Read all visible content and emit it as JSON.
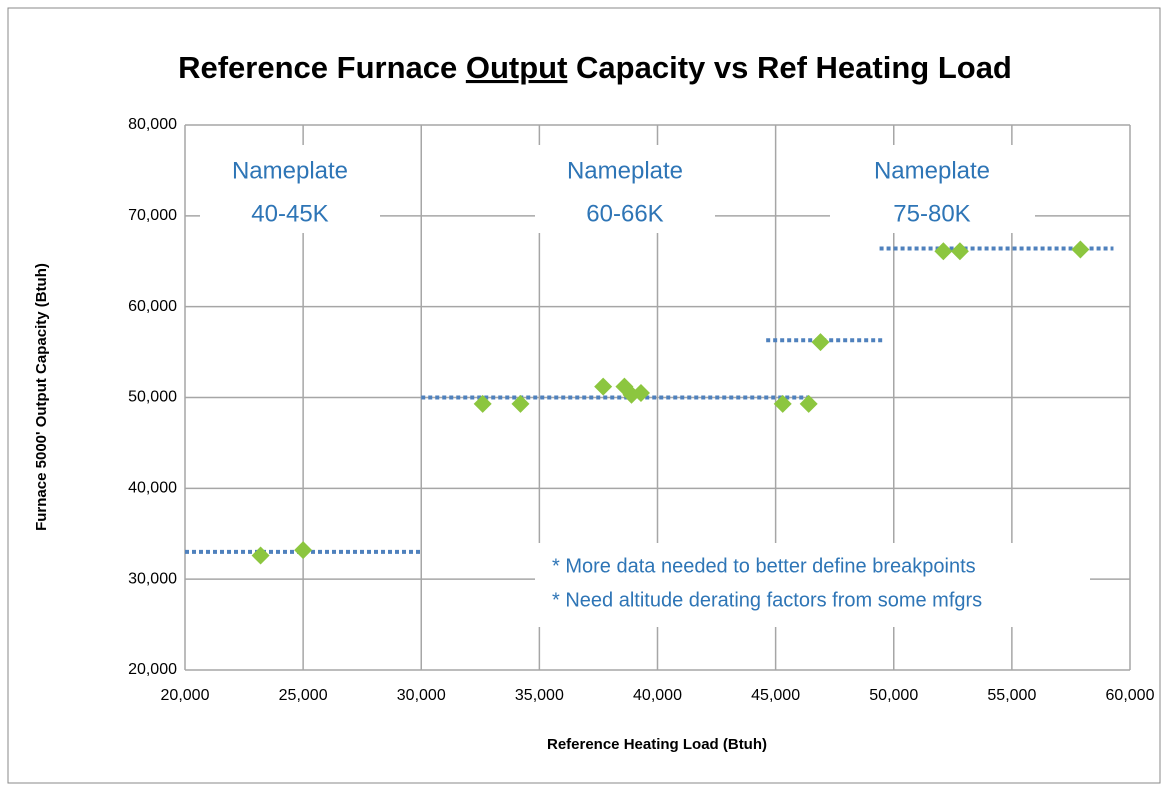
{
  "chart_data": {
    "type": "scatter",
    "title": "Reference Furnace Output Capacity vs Ref Heating Load",
    "title_underline": "Output",
    "x_label": "Reference Heating Load (Btuh)",
    "y_label": "Furnace 5000' Output Capacity (Btuh)",
    "xlim": [
      20000,
      60000
    ],
    "ylim": [
      20000,
      80000
    ],
    "xticks": [
      {
        "value": 20000,
        "label": "20,000"
      },
      {
        "value": 25000,
        "label": "25,000"
      },
      {
        "value": 30000,
        "label": "30,000"
      },
      {
        "value": 35000,
        "label": "35,000"
      },
      {
        "value": 40000,
        "label": "40,000"
      },
      {
        "value": 45000,
        "label": "45,000"
      },
      {
        "value": 50000,
        "label": "50,000"
      },
      {
        "value": 55000,
        "label": "55,000"
      },
      {
        "value": 60000,
        "label": "60,000"
      }
    ],
    "yticks": [
      {
        "value": 20000,
        "label": "20,000"
      },
      {
        "value": 30000,
        "label": "30,000"
      },
      {
        "value": 40000,
        "label": "40,000"
      },
      {
        "value": 50000,
        "label": "50,000"
      },
      {
        "value": 60000,
        "label": "60,000"
      },
      {
        "value": 70000,
        "label": "70,000"
      },
      {
        "value": 80000,
        "label": "80,000"
      }
    ],
    "grid": true,
    "series": [
      {
        "color": "#8cc63f",
        "x": [
          23200,
          25000,
          32600,
          34200,
          37700,
          38600,
          38900,
          39300,
          45300,
          46400,
          46900,
          52100,
          52800,
          57900
        ],
        "values": [
          32600,
          33200,
          49300,
          49300,
          51200,
          51200,
          50300,
          50500,
          49300,
          49300,
          56100,
          66100,
          66100,
          66300
        ]
      }
    ],
    "reference_lines": {
      "color": "#4f81bd",
      "lines": [
        {
          "x": [
            20000,
            30000
          ],
          "y": [
            33000,
            33000
          ]
        },
        {
          "x": [
            30000,
            46400
          ],
          "y": [
            50000,
            50000
          ]
        },
        {
          "x": [
            44600,
            49600
          ],
          "y": [
            56300,
            56300
          ]
        },
        {
          "x": [
            49400,
            59300
          ],
          "y": [
            66400,
            66400
          ]
        }
      ]
    },
    "annotations": [
      {
        "lines": [
          "Nameplate",
          "40-45K"
        ]
      },
      {
        "lines": [
          "Nameplate",
          "60-66K"
        ]
      },
      {
        "lines": [
          "Nameplate",
          "75-80K"
        ]
      }
    ],
    "notes": [
      "* More data needed to better define breakpoints",
      "* Need altitude derating factors from some mfgrs"
    ]
  }
}
